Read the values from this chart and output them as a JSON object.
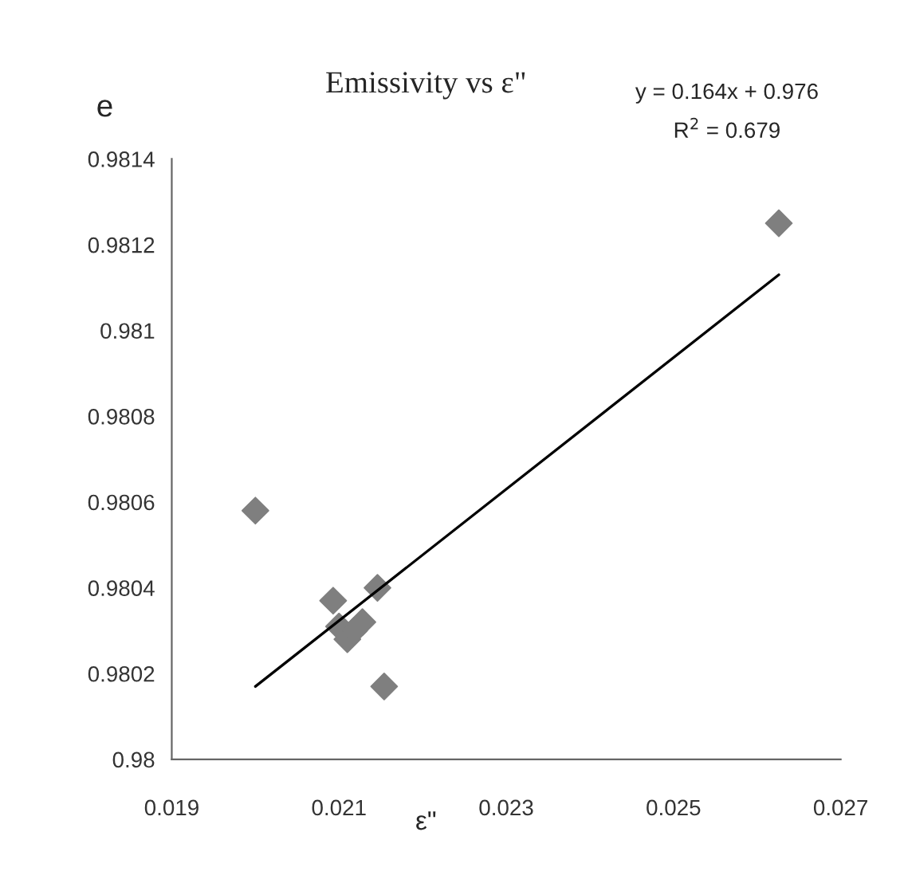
{
  "chart_data": {
    "type": "scatter",
    "title": "Emissivity vs ε\"",
    "xlabel": "ε\"",
    "ylabel": "e",
    "annotations": [
      "y = 0.164x + 0.976",
      "R$^{2}$ = 0.679"
    ],
    "series": [
      {
        "color": "#7f7f7f",
        "marker": "diamond",
        "x": [
          0.02,
          0.02093,
          0.02146,
          0.02154,
          0.021,
          0.0211,
          0.02128,
          0.02118,
          0.02626
        ],
        "values": [
          0.98058,
          0.98037,
          0.9804,
          0.98017,
          0.98031,
          0.98028,
          0.98032,
          0.9803,
          0.98125
        ]
      },
      {
        "type": "line",
        "color": "#000000",
        "marker": "none",
        "x": [
          0.02,
          0.02626
        ],
        "values": [
          0.98017,
          0.98113
        ]
      }
    ],
    "xlim": [
      0.019,
      0.027
    ],
    "xticks": [
      0.019,
      0.021,
      0.023,
      0.025,
      0.027
    ],
    "ylim": [
      0.98,
      0.9814
    ],
    "yticks": [
      0.98,
      0.9802,
      0.9804,
      0.9806,
      0.9808,
      0.981,
      0.9812,
      0.9814
    ],
    "grid": false,
    "legend": false
  }
}
